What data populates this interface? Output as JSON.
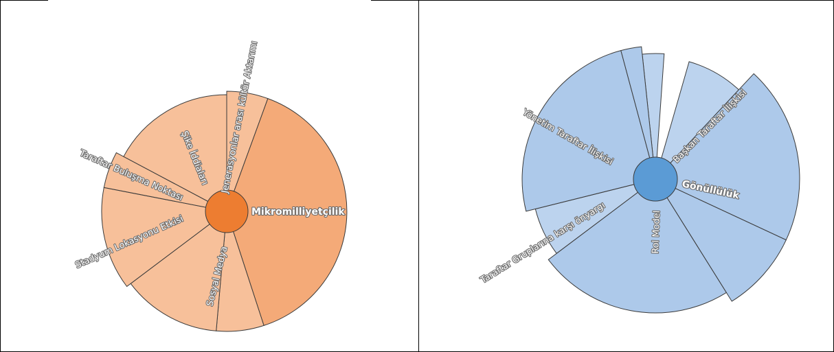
{
  "left_chart": {
    "labels": {
      "mikromilliyetcilik": "Mikromilliyetçilik",
      "jenerasyonlar": "Jenerasyonlar arası kültür Aktarımı",
      "sike_iddialari": "Şike İddiaları",
      "taraftar_bulusma": "Taraftar Buluşma Noktası",
      "stadyum_lokasyonu": "Stadyum Lokasyonu Etkisi",
      "sosyal_medya": "Sosyal Medya"
    },
    "colors": {
      "fill": "#f7c09a",
      "fill_main": "#f4aa78",
      "hub": "#ed7d31",
      "stroke": "#3a3a3a"
    }
  },
  "right_chart": {
    "labels": {
      "yonetim": "Yönetim Taraftar İlişkisi",
      "baskan": "Başkan Taraftar İlişkisi",
      "gonulluluk": "Gönüllülük",
      "rol_model": "Rol Model",
      "taraftar_gruplari": "Taraftar Gruplarına karşı önyargı"
    },
    "colors": {
      "fill": "#adc9ea",
      "fill_light": "#bcd3ee",
      "hub": "#5b9bd5",
      "stroke": "#3a3a3a"
    }
  }
}
